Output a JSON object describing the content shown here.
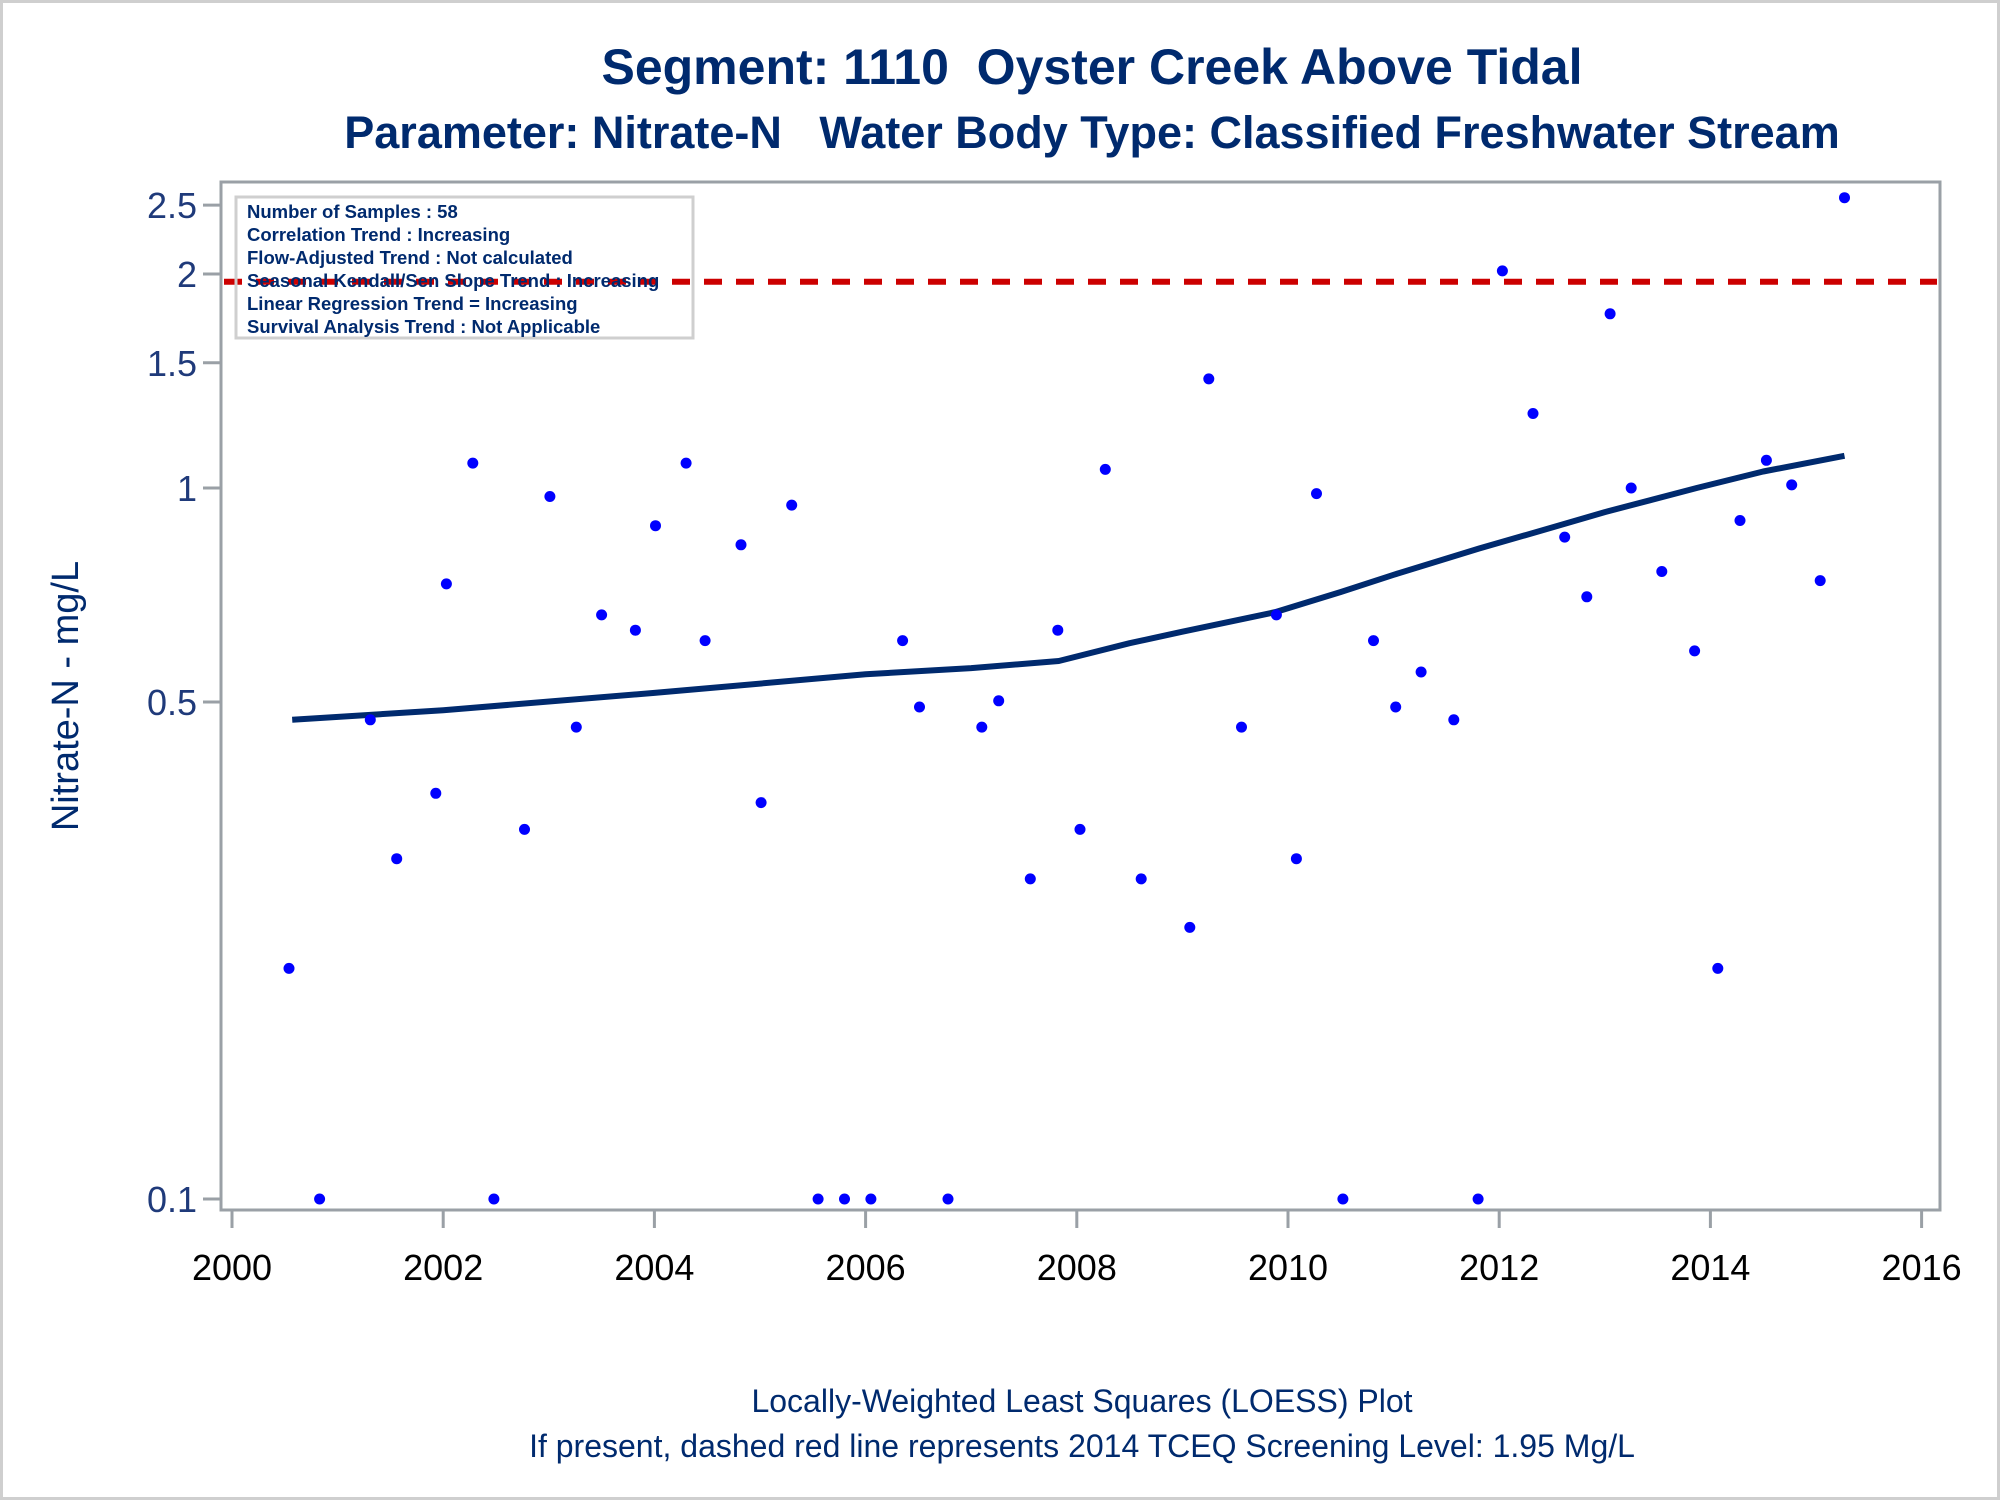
{
  "chart_data": {
    "type": "scatter",
    "title": "Segment: 1110  Oyster Creek Above Tidal",
    "subtitle": "Parameter: Nitrate-N   Water Body Type: Classified Freshwater Stream",
    "xlabel": "",
    "ylabel": "Nitrate-N - mg/L",
    "y_scale": "log",
    "xlim": [
      2000,
      2016
    ],
    "ylim": [
      0.095,
      2.62
    ],
    "x_ticks": [
      "2000",
      "2002",
      "2004",
      "2006",
      "2008",
      "2010",
      "2012",
      "2014",
      "2016"
    ],
    "x_tick_values": [
      2000,
      2002,
      2004,
      2006,
      2008,
      2010,
      2012,
      2014,
      2016
    ],
    "y_ticks": [
      "0.1",
      "0.5",
      "1",
      "1.5",
      "2",
      "2.5"
    ],
    "y_tick_values": [
      0.1,
      0.5,
      1,
      1.5,
      2,
      2.5
    ],
    "grid": false,
    "info_box": {
      "location": "top-left",
      "lines": [
        "Number of Samples : 58",
        "Correlation Trend : Increasing",
        "Flow-Adjusted Trend : Not calculated",
        "Seasonal Kendall/Sen Slope Trend : Increasing",
        "Linear Regression Trend = Increasing",
        "Survival Analysis Trend : Not Applicable"
      ]
    },
    "screening_level": {
      "value": 1.95,
      "style": "dashed",
      "color": "#cc0000"
    },
    "footer": [
      "Locally-Weighted Least Squares (LOESS) Plot",
      "If present, dashed red line represents 2014 TCEQ Screening Level: 1.95 Mg/L"
    ],
    "series": [
      {
        "name": "Samples",
        "kind": "scatter",
        "color": "#0000ff",
        "points": [
          [
            2000.54,
            0.211
          ],
          [
            2000.83,
            0.1
          ],
          [
            2001.31,
            0.472
          ],
          [
            2001.56,
            0.301
          ],
          [
            2001.93,
            0.372
          ],
          [
            2002.03,
            0.733
          ],
          [
            2002.28,
            1.084
          ],
          [
            2002.48,
            0.1
          ],
          [
            2002.77,
            0.331
          ],
          [
            2003.01,
            0.973
          ],
          [
            2003.26,
            0.461
          ],
          [
            2003.5,
            0.663
          ],
          [
            2003.82,
            0.631
          ],
          [
            2004.01,
            0.885
          ],
          [
            2004.3,
            1.084
          ],
          [
            2004.48,
            0.61
          ],
          [
            2004.82,
            0.832
          ],
          [
            2005.01,
            0.361
          ],
          [
            2005.3,
            0.946
          ],
          [
            2005.55,
            0.1
          ],
          [
            2005.8,
            0.1
          ],
          [
            2006.05,
            0.1
          ],
          [
            2006.35,
            0.61
          ],
          [
            2006.51,
            0.492
          ],
          [
            2006.78,
            0.1
          ],
          [
            2007.1,
            0.461
          ],
          [
            2007.26,
            0.502
          ],
          [
            2007.56,
            0.282
          ],
          [
            2007.82,
            0.631
          ],
          [
            2008.03,
            0.331
          ],
          [
            2008.27,
            1.062
          ],
          [
            2008.61,
            0.282
          ],
          [
            2009.07,
            0.241
          ],
          [
            2009.25,
            1.424
          ],
          [
            2009.56,
            0.461
          ],
          [
            2009.89,
            0.663
          ],
          [
            2010.08,
            0.301
          ],
          [
            2010.27,
            0.982
          ],
          [
            2010.52,
            0.1
          ],
          [
            2010.81,
            0.61
          ],
          [
            2011.02,
            0.492
          ],
          [
            2011.26,
            0.551
          ],
          [
            2011.57,
            0.472
          ],
          [
            2011.8,
            0.1
          ],
          [
            2012.03,
            2.02
          ],
          [
            2012.32,
            1.273
          ],
          [
            2012.62,
            0.853
          ],
          [
            2012.83,
            0.703
          ],
          [
            2013.05,
            1.758
          ],
          [
            2013.25,
            1.0
          ],
          [
            2013.54,
            0.763
          ],
          [
            2013.85,
            0.59
          ],
          [
            2014.07,
            0.211
          ],
          [
            2014.28,
            0.9
          ],
          [
            2014.53,
            1.094
          ],
          [
            2014.77,
            1.01
          ],
          [
            2015.04,
            0.741
          ],
          [
            2015.27,
            2.56
          ]
        ]
      },
      {
        "name": "LOESS",
        "kind": "line",
        "color": "#002a6e",
        "points": [
          [
            2000.57,
            0.472
          ],
          [
            2002.0,
            0.487
          ],
          [
            2004.0,
            0.515
          ],
          [
            2006.0,
            0.547
          ],
          [
            2007.0,
            0.558
          ],
          [
            2007.83,
            0.571
          ],
          [
            2008.5,
            0.605
          ],
          [
            2009.0,
            0.628
          ],
          [
            2009.88,
            0.669
          ],
          [
            2010.5,
            0.714
          ],
          [
            2011.0,
            0.755
          ],
          [
            2011.81,
            0.822
          ],
          [
            2012.5,
            0.88
          ],
          [
            2013.0,
            0.925
          ],
          [
            2013.87,
            1.0
          ],
          [
            2014.5,
            1.055
          ],
          [
            2015.27,
            1.11
          ]
        ]
      }
    ]
  }
}
